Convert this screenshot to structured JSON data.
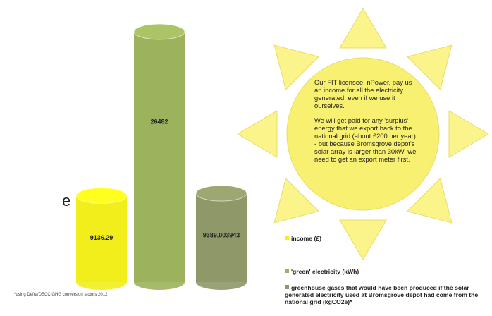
{
  "chart_data": {
    "type": "bar",
    "cut_text": "e",
    "series": [
      {
        "name": "income (£)",
        "color": "#f2ee1c",
        "values": [
          9136.29
        ]
      },
      {
        "name": "'green' electricity (kWh)",
        "color": "#9cb25c",
        "values": [
          26482
        ]
      },
      {
        "name": "greenhouse gases that would have been produced if the solar generated electricity used at Bromsgrove depot had come from the national grid (kgCO2e)*",
        "color": "#8e9868",
        "values": [
          9389.003943
        ]
      }
    ],
    "sun_text": [
      "Our FIT licensee, nPower, pay us an income for all the electricity generated, even if we use it ourselves.",
      "We will get paid for any 'surplus' energy that we export back to the national grid (about £200 per year) -  but because Bromsgrove depot's solar array is larger than 30kW, we need to get an export meter first."
    ],
    "footnote": "*using Defra/DECC GHG conversion factors 2012"
  }
}
